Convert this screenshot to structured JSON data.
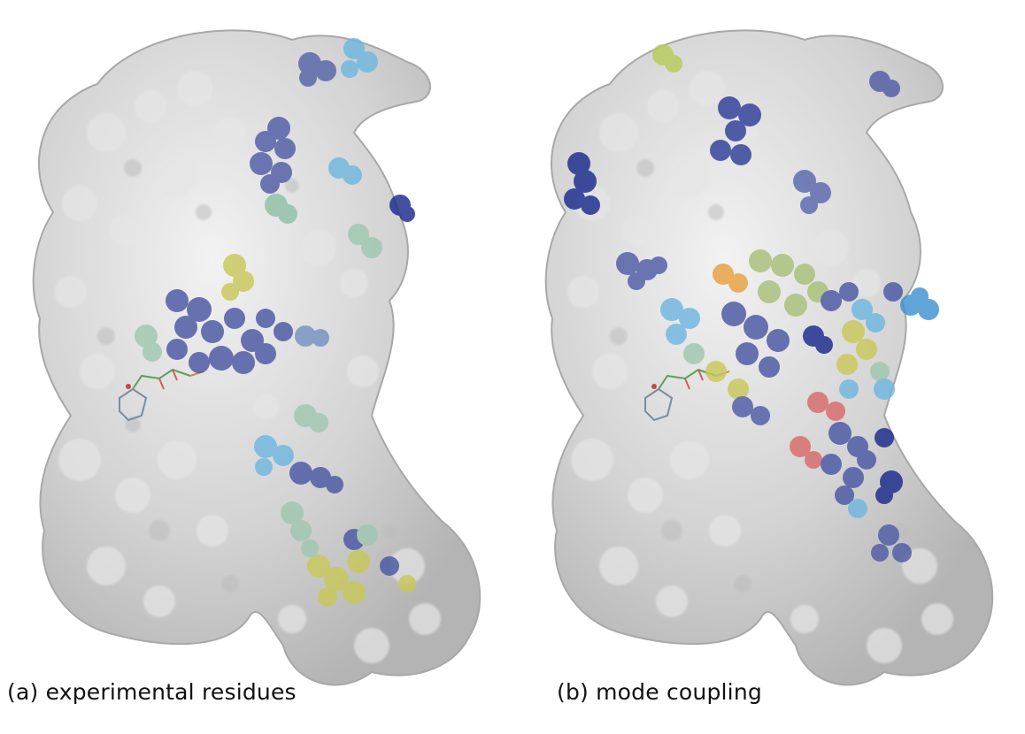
{
  "figure": {
    "panels": [
      {
        "caption": "(a) experimental residues",
        "highlight_palette": [
          "#3b4aa0",
          "#1a2a8c",
          "#6fb7e0",
          "#9fc7b0",
          "#c9c85a"
        ]
      },
      {
        "caption": "(b) mode coupling",
        "highlight_palette": [
          "#3b4aa0",
          "#1a2a8c",
          "#6fb7e0",
          "#9fc7b0",
          "#c9c85a",
          "#e8a040",
          "#d96a6a"
        ]
      }
    ],
    "surface_color": "#d4d4d4"
  }
}
